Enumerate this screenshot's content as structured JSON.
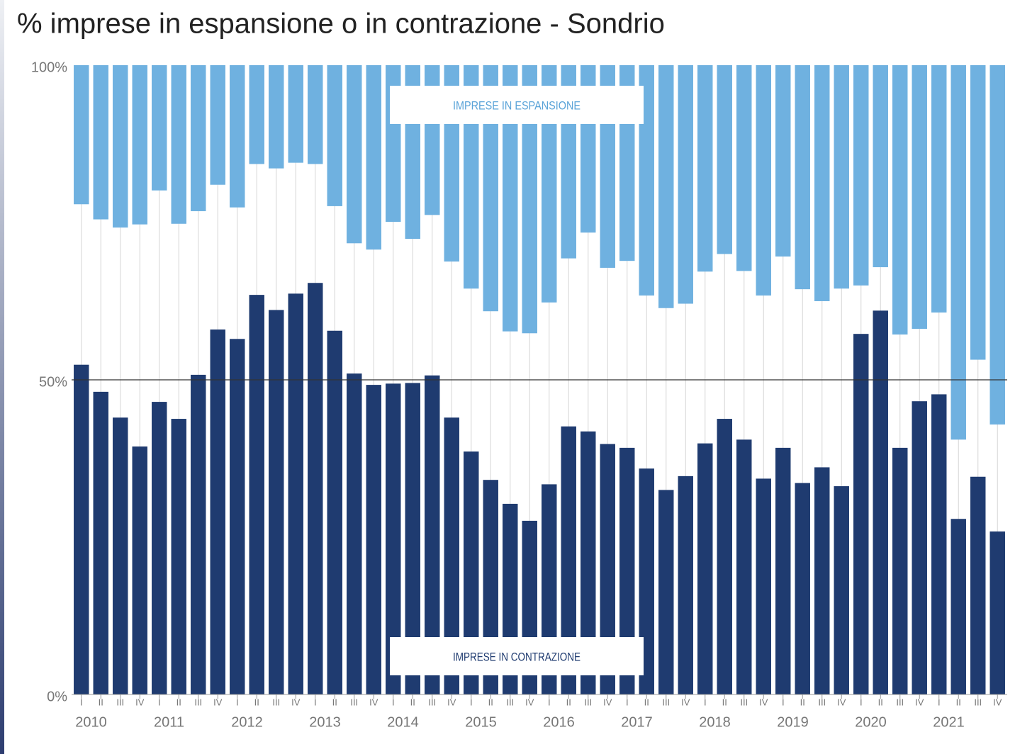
{
  "chart_data": {
    "type": "bar",
    "title": "% imprese in espansione o in contrazione - Sondrio",
    "categories": [
      "I",
      "II",
      "III",
      "IV",
      "I",
      "II",
      "III",
      "IV",
      "I",
      "II",
      "III",
      "IV",
      "I",
      "II",
      "III",
      "IV",
      "I",
      "II",
      "III",
      "IV",
      "I",
      "II",
      "III",
      "IV",
      "I",
      "II",
      "III",
      "IV",
      "I",
      "II",
      "III",
      "IV",
      "I",
      "II",
      "III",
      "IV",
      "I",
      "II",
      "III",
      "IV",
      "I",
      "II",
      "III",
      "IV",
      "I",
      "II",
      "III",
      "IV"
    ],
    "years": [
      "2010",
      "2011",
      "2012",
      "2013",
      "2014",
      "2015",
      "2016",
      "2017",
      "2018",
      "2019",
      "2020",
      "2021"
    ],
    "series": [
      {
        "name": "IMPRESE IN ESPANSIONE",
        "color": "#6fb1e0",
        "anchor": "top",
        "values": [
          22.1,
          24.5,
          25.8,
          25.3,
          19.9,
          25.2,
          23.2,
          19.0,
          22.6,
          15.7,
          16.4,
          15.5,
          15.7,
          22.4,
          28.3,
          29.3,
          24.9,
          27.6,
          23.8,
          31.2,
          35.5,
          39.1,
          42.3,
          42.6,
          37.7,
          30.7,
          26.6,
          32.2,
          31.1,
          36.6,
          38.6,
          37.9,
          32.8,
          30.0,
          32.7,
          36.6,
          30.4,
          35.6,
          37.5,
          35.5,
          35.0,
          32.1,
          42.8,
          41.9,
          39.3,
          59.5,
          46.8,
          57.1
        ]
      },
      {
        "name": "IMPRESE IN CONTRAZIONE",
        "color": "#1f3b70",
        "anchor": "bottom",
        "values": [
          52.4,
          48.1,
          44.0,
          39.4,
          46.5,
          43.8,
          50.8,
          58.0,
          56.5,
          63.5,
          61.1,
          63.7,
          65.4,
          57.8,
          51.0,
          49.2,
          49.4,
          49.5,
          50.7,
          44.0,
          38.6,
          34.1,
          30.3,
          27.6,
          33.4,
          42.6,
          41.8,
          39.8,
          39.2,
          35.9,
          32.5,
          34.7,
          39.9,
          43.8,
          40.5,
          34.3,
          39.2,
          33.6,
          36.1,
          33.1,
          57.3,
          61.0,
          39.2,
          46.6,
          47.7,
          27.9,
          34.6,
          25.9
        ]
      }
    ],
    "ylim": [
      0,
      100
    ],
    "yticks": [
      {
        "value": 0,
        "label": "0%"
      },
      {
        "value": 50,
        "label": "50%"
      },
      {
        "value": 100,
        "label": "100%"
      }
    ],
    "grid": true
  }
}
